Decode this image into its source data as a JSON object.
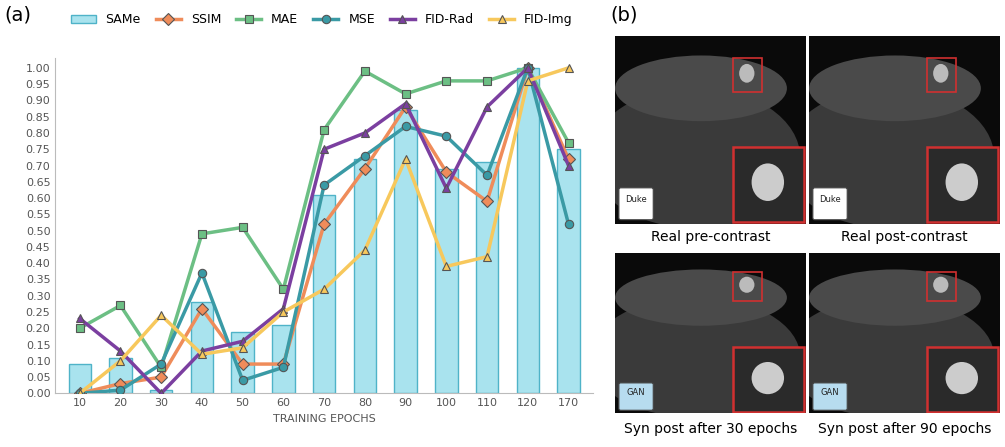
{
  "panel_labels": [
    "(a)",
    "(b)"
  ],
  "chart_data": {
    "type": "line",
    "x_label": "TRAINING EPOCHS",
    "categories": [
      "10",
      "20",
      "30",
      "40",
      "50",
      "60",
      "70",
      "80",
      "90",
      "100",
      "110",
      "120",
      "170"
    ],
    "series": [
      {
        "name": "SAMe",
        "type": "bar",
        "color": "#a9e3ee",
        "values": [
          0.09,
          0.11,
          0.01,
          0.28,
          0.19,
          0.21,
          0.61,
          0.72,
          0.87,
          0.69,
          0.71,
          1.0,
          0.75
        ]
      },
      {
        "name": "SSIM",
        "type": "line",
        "color": "#ef8c5a",
        "marker": "diamond",
        "values": [
          0.0,
          0.03,
          0.05,
          0.26,
          0.09,
          0.09,
          0.52,
          0.69,
          0.88,
          0.68,
          0.59,
          1.0,
          0.72
        ]
      },
      {
        "name": "MAE",
        "type": "line",
        "color": "#6cbf84",
        "marker": "square",
        "values": [
          0.2,
          0.27,
          0.08,
          0.49,
          0.51,
          0.32,
          0.81,
          0.99,
          0.92,
          0.96,
          0.96,
          1.0,
          0.77
        ]
      },
      {
        "name": "MSE",
        "type": "line",
        "color": "#3a9aa5",
        "marker": "circle",
        "values": [
          0.0,
          0.01,
          0.09,
          0.37,
          0.04,
          0.08,
          0.64,
          0.73,
          0.82,
          0.79,
          0.67,
          1.0,
          0.52
        ]
      },
      {
        "name": "FID-Rad",
        "type": "line",
        "color": "#7b3fa0",
        "marker": "triangle",
        "values": [
          0.23,
          0.13,
          0.0,
          0.13,
          0.16,
          0.26,
          0.75,
          0.8,
          0.89,
          0.63,
          0.88,
          1.0,
          0.7
        ]
      },
      {
        "name": "FID-Img",
        "type": "line",
        "color": "#f7c85c",
        "marker": "triangle",
        "values": [
          0.0,
          0.1,
          0.24,
          0.12,
          0.14,
          0.25,
          0.32,
          0.44,
          0.72,
          0.39,
          0.42,
          0.96,
          1.0
        ]
      }
    ],
    "ylim": [
      0,
      1.03
    ],
    "yticks": [
      {
        "value": 0,
        "label": "0.00"
      },
      {
        "value": 0.05,
        "label": "0.05"
      },
      {
        "value": 0.1,
        "label": "0.10"
      },
      {
        "value": 0.15,
        "label": "0.15"
      },
      {
        "value": 0.2,
        "label": "0.20"
      },
      {
        "value": 0.25,
        "label": "0.25"
      },
      {
        "value": 0.3,
        "label": "0.30"
      },
      {
        "value": 0.35,
        "label": "0.35"
      },
      {
        "value": 0.4,
        "label": "0.40"
      },
      {
        "value": 0.45,
        "label": "0.45"
      },
      {
        "value": 0.5,
        "label": "0.50"
      },
      {
        "value": 0.55,
        "label": "0.55"
      },
      {
        "value": 0.6,
        "label": "0.60"
      },
      {
        "value": 0.65,
        "label": "0.65"
      },
      {
        "value": 0.7,
        "label": "0.70"
      },
      {
        "value": 0.75,
        "label": "0.75"
      },
      {
        "value": 0.8,
        "label": "0.80"
      },
      {
        "value": 0.85,
        "label": "0.85"
      },
      {
        "value": 0.9,
        "label": "0.90"
      },
      {
        "value": 0.95,
        "label": "0.95"
      },
      {
        "value": 1.0,
        "label": "1.00"
      }
    ],
    "grid": false,
    "legend": "upper center"
  },
  "images": [
    {
      "caption": "Real pre-contrast",
      "badge": "Duke"
    },
    {
      "caption": "Real post-contrast",
      "badge": "Duke"
    },
    {
      "caption": "Syn post after 30 epochs",
      "badge": "GAN"
    },
    {
      "caption": "Syn post after 90 epochs",
      "badge": "GAN"
    }
  ]
}
